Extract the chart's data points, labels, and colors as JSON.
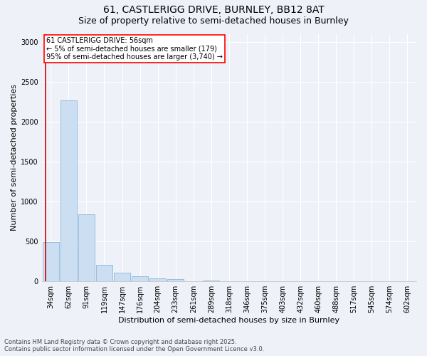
{
  "title_line1": "61, CASTLERIGG DRIVE, BURNLEY, BB12 8AT",
  "title_line2": "Size of property relative to semi-detached houses in Burnley",
  "xlabel": "Distribution of semi-detached houses by size in Burnley",
  "ylabel": "Number of semi-detached properties",
  "bar_color": "#ccdff2",
  "bar_edge_color": "#7aadd4",
  "vline_color": "#cc0000",
  "categories": [
    "34sqm",
    "62sqm",
    "91sqm",
    "119sqm",
    "147sqm",
    "176sqm",
    "204sqm",
    "233sqm",
    "261sqm",
    "289sqm",
    "318sqm",
    "346sqm",
    "375sqm",
    "403sqm",
    "432sqm",
    "460sqm",
    "488sqm",
    "517sqm",
    "545sqm",
    "574sqm",
    "602sqm"
  ],
  "values": [
    490,
    2270,
    840,
    210,
    105,
    65,
    40,
    28,
    5,
    10,
    5,
    0,
    0,
    0,
    0,
    0,
    0,
    0,
    0,
    0,
    0
  ],
  "ylim": [
    0,
    3100
  ],
  "yticks": [
    0,
    500,
    1000,
    1500,
    2000,
    2500,
    3000
  ],
  "annotation_text": "61 CASTLERIGG DRIVE: 56sqm\n← 5% of semi-detached houses are smaller (179)\n95% of semi-detached houses are larger (3,740) →",
  "footnote": "Contains HM Land Registry data © Crown copyright and database right 2025.\nContains public sector information licensed under the Open Government Licence v3.0.",
  "background_color": "#eef2f8",
  "plot_bg_color": "#eef2f8",
  "grid_color": "#ffffff",
  "title_fontsize": 10,
  "subtitle_fontsize": 9,
  "ylabel_fontsize": 8,
  "xlabel_fontsize": 8,
  "tick_fontsize": 7,
  "annotation_fontsize": 7,
  "footnote_fontsize": 6
}
